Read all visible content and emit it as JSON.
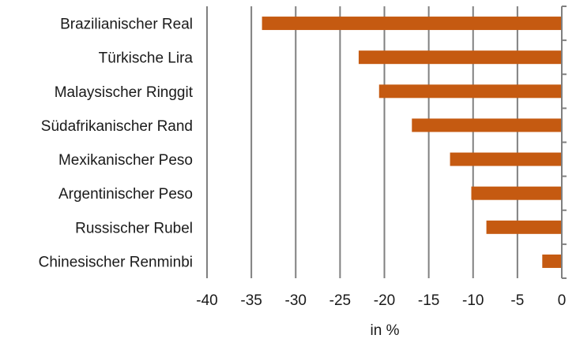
{
  "chart_data": {
    "type": "bar",
    "orientation": "horizontal",
    "categories": [
      "Brazilianischer Real",
      "Türkische Lira",
      "Malaysischer Ringgit",
      "Südafrikanischer Rand",
      "Mexikanischer Peso",
      "Argentinischer Peso",
      "Russischer Rubel",
      "Chinesischer Renminbi"
    ],
    "values": [
      -33.8,
      -22.9,
      -20.6,
      -16.9,
      -12.6,
      -10.2,
      -8.5,
      -2.2
    ],
    "xlabel": "in %",
    "ylabel": "",
    "xlim": [
      -40,
      0
    ],
    "xticks": [
      "-40",
      "-35",
      "-30",
      "-25",
      "-20",
      "-15",
      "-10",
      "-5",
      "0"
    ],
    "grid": "vertical",
    "legend": "none",
    "colors": {
      "bar": "#C55A11",
      "grid": "#808080",
      "axis": "#808080"
    }
  }
}
